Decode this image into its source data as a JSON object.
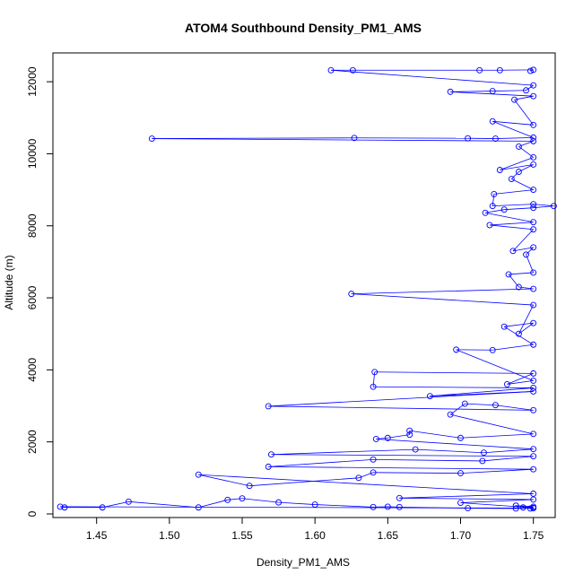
{
  "chart_data": {
    "type": "line",
    "title": "ATOM4 Southbound Density_PM1_AMS",
    "xlabel": "Density_PM1_AMS",
    "ylabel": "Altitude (m)",
    "xlim": [
      1.42,
      1.765
    ],
    "ylim": [
      -100,
      12800
    ],
    "xticks": [
      1.45,
      1.5,
      1.55,
      1.6,
      1.65,
      1.7,
      1.75
    ],
    "xtick_labels": [
      "1.45",
      "1.50",
      "1.55",
      "1.60",
      "1.65",
      "1.70",
      "1.75"
    ],
    "yticks": [
      0,
      2000,
      4000,
      6000,
      8000,
      10000,
      12000
    ],
    "ytick_labels": [
      "0",
      "2000",
      "4000",
      "6000",
      "8000",
      "10000",
      "12000"
    ],
    "grid": false,
    "legend": "none",
    "series": [
      {
        "color": "#0000ff",
        "marker": "open-circle",
        "points": [
          [
            1.748,
            150
          ],
          [
            1.743,
            180
          ],
          [
            1.75,
            200
          ],
          [
            1.738,
            230
          ],
          [
            1.75,
            160
          ],
          [
            1.425,
            200
          ],
          [
            1.428,
            180
          ],
          [
            1.454,
            180
          ],
          [
            1.472,
            340
          ],
          [
            1.52,
            180
          ],
          [
            1.54,
            390
          ],
          [
            1.55,
            430
          ],
          [
            1.575,
            320
          ],
          [
            1.6,
            260
          ],
          [
            1.64,
            190
          ],
          [
            1.65,
            200
          ],
          [
            1.658,
            190
          ],
          [
            1.705,
            160
          ],
          [
            1.738,
            150
          ],
          [
            1.75,
            170
          ],
          [
            1.7,
            310
          ],
          [
            1.75,
            400
          ],
          [
            1.658,
            440
          ],
          [
            1.75,
            560
          ],
          [
            1.52,
            1090
          ],
          [
            1.555,
            780
          ],
          [
            1.63,
            1000
          ],
          [
            1.64,
            1150
          ],
          [
            1.7,
            1130
          ],
          [
            1.75,
            1240
          ],
          [
            1.568,
            1310
          ],
          [
            1.64,
            1510
          ],
          [
            1.715,
            1470
          ],
          [
            1.75,
            1600
          ],
          [
            1.57,
            1650
          ],
          [
            1.669,
            1790
          ],
          [
            1.716,
            1700
          ],
          [
            1.75,
            1800
          ],
          [
            1.642,
            2080
          ],
          [
            1.65,
            2110
          ],
          [
            1.665,
            2200
          ],
          [
            1.665,
            2310
          ],
          [
            1.7,
            2110
          ],
          [
            1.75,
            2220
          ],
          [
            1.693,
            2760
          ],
          [
            1.703,
            3060
          ],
          [
            1.724,
            3020
          ],
          [
            1.75,
            2880
          ],
          [
            1.568,
            2990
          ],
          [
            1.75,
            3400
          ],
          [
            1.679,
            3270
          ],
          [
            1.75,
            3500
          ],
          [
            1.64,
            3530
          ],
          [
            1.641,
            3940
          ],
          [
            1.75,
            3900
          ],
          [
            1.732,
            3600
          ],
          [
            1.75,
            3700
          ],
          [
            1.697,
            4560
          ],
          [
            1.722,
            4550
          ],
          [
            1.75,
            4700
          ],
          [
            1.73,
            5200
          ],
          [
            1.75,
            5300
          ],
          [
            1.74,
            5000
          ],
          [
            1.75,
            5800
          ],
          [
            1.625,
            6110
          ],
          [
            1.75,
            6250
          ],
          [
            1.74,
            6300
          ],
          [
            1.733,
            6650
          ],
          [
            1.75,
            6700
          ],
          [
            1.745,
            7200
          ],
          [
            1.75,
            7400
          ],
          [
            1.736,
            7300
          ],
          [
            1.75,
            7900
          ],
          [
            1.72,
            8020
          ],
          [
            1.75,
            8100
          ],
          [
            1.717,
            8360
          ],
          [
            1.73,
            8450
          ],
          [
            1.75,
            8500
          ],
          [
            1.764,
            8550
          ],
          [
            1.75,
            8600
          ],
          [
            1.722,
            8550
          ],
          [
            1.723,
            8880
          ],
          [
            1.75,
            9000
          ],
          [
            1.735,
            9300
          ],
          [
            1.74,
            9500
          ],
          [
            1.75,
            9700
          ],
          [
            1.727,
            9550
          ],
          [
            1.75,
            9900
          ],
          [
            1.74,
            10200
          ],
          [
            1.75,
            10350
          ],
          [
            1.488,
            10420
          ],
          [
            1.627,
            10440
          ],
          [
            1.705,
            10430
          ],
          [
            1.724,
            10420
          ],
          [
            1.75,
            10450
          ],
          [
            1.722,
            10900
          ],
          [
            1.75,
            10800
          ],
          [
            1.737,
            11500
          ],
          [
            1.75,
            11600
          ],
          [
            1.693,
            11720
          ],
          [
            1.722,
            11740
          ],
          [
            1.745,
            11760
          ],
          [
            1.75,
            11900
          ],
          [
            1.611,
            12320
          ],
          [
            1.626,
            12320
          ],
          [
            1.713,
            12320
          ],
          [
            1.727,
            12320
          ],
          [
            1.75,
            12330
          ],
          [
            1.748,
            12300
          ]
        ]
      }
    ]
  }
}
